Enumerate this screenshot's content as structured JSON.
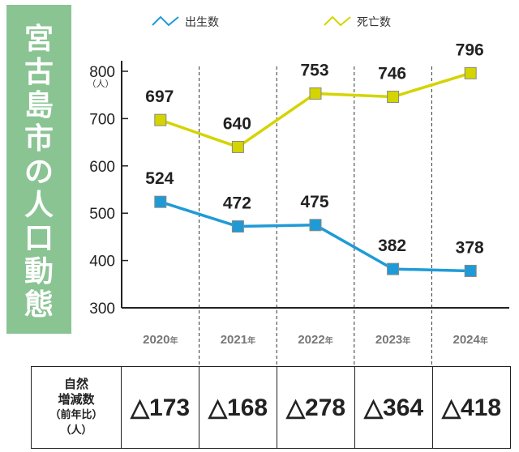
{
  "side_title": [
    "宮",
    "古",
    "島",
    "市",
    "の",
    "人",
    "口",
    "動",
    "態"
  ],
  "chart_data": {
    "type": "line",
    "categories": [
      "2020",
      "2021",
      "2022",
      "2023",
      "2024"
    ],
    "category_suffix": "年",
    "series": [
      {
        "name": "出生数",
        "values": [
          524,
          472,
          475,
          382,
          378
        ],
        "color": "#1e9bd7"
      },
      {
        "name": "死亡数",
        "values": [
          697,
          640,
          753,
          746,
          796
        ],
        "color": "#d4d400"
      }
    ],
    "ylim": [
      300,
      800
    ],
    "yticks": [
      300,
      400,
      500,
      600,
      700,
      800
    ],
    "yunit": "（人）",
    "grid": "vertical dashed",
    "legend": "top"
  },
  "table": {
    "header_lines": [
      "自然",
      "増減数",
      "（前年比）",
      "（人）"
    ],
    "values": [
      "△173",
      "△168",
      "△278",
      "△364",
      "△418"
    ]
  }
}
